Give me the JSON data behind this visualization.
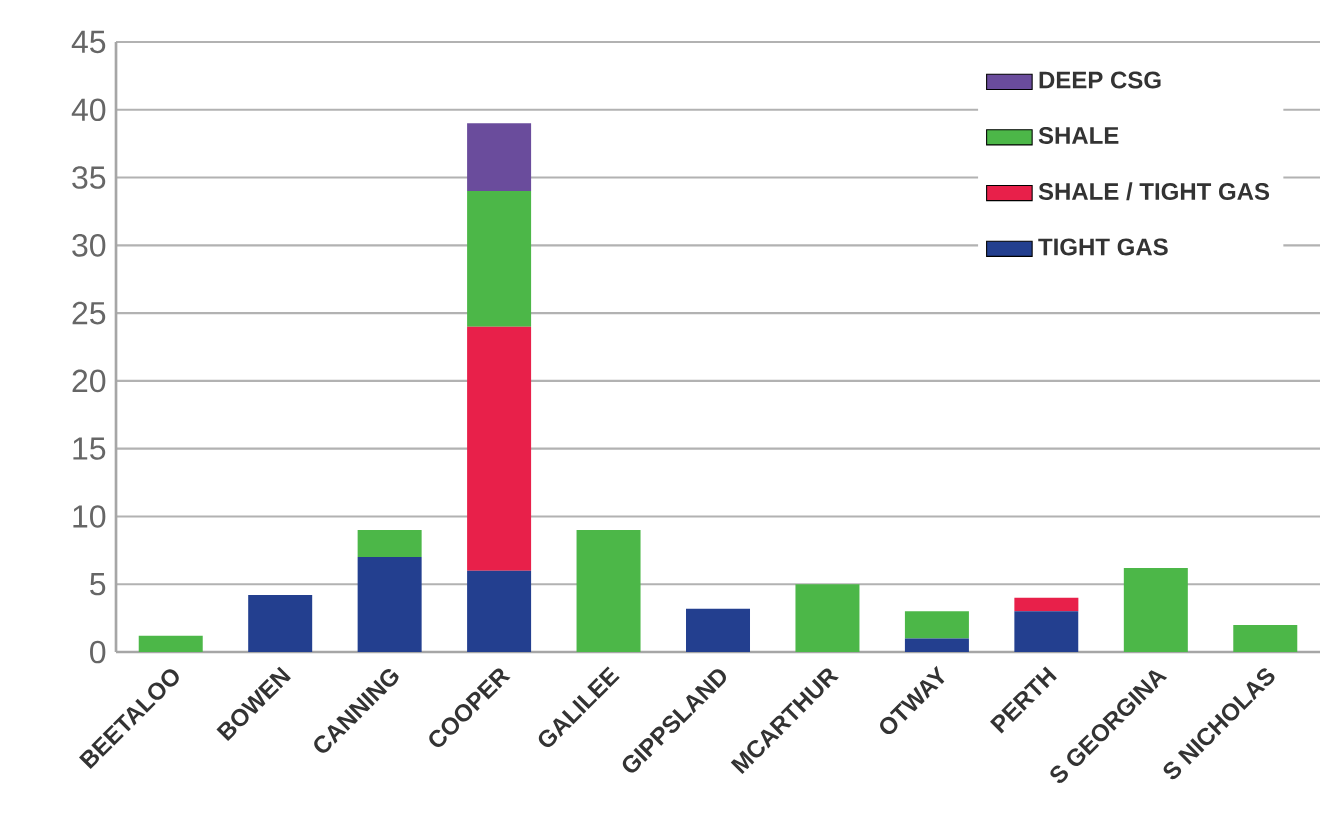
{
  "chart_data": {
    "type": "bar",
    "stacked": true,
    "categories": [
      "BEETALOO",
      "BOWEN",
      "CANNING",
      "COOPER",
      "GALILEE",
      "GIPPSLAND",
      "MCARTHUR",
      "OTWAY",
      "PERTH",
      "S GEORGINA",
      "S NICHOLAS"
    ],
    "series": [
      {
        "name": "TIGHT GAS",
        "color": "#233f8f",
        "values": [
          null,
          4.2,
          7,
          6,
          null,
          3.2,
          null,
          1,
          3,
          null,
          null
        ]
      },
      {
        "name": "SHALE / TIGHT GAS",
        "color": "#e8204a",
        "values": [
          null,
          null,
          null,
          18,
          null,
          null,
          null,
          null,
          1,
          null,
          null
        ]
      },
      {
        "name": "SHALE",
        "color": "#4cb748",
        "values": [
          1.2,
          null,
          2,
          10,
          9,
          null,
          5,
          2,
          null,
          6.2,
          2
        ]
      },
      {
        "name": "DEEP CSG",
        "color": "#6a4c9c",
        "values": [
          null,
          null,
          null,
          5,
          null,
          null,
          null,
          null,
          null,
          null,
          null
        ]
      }
    ],
    "ylim": [
      0,
      45
    ],
    "yticks": [
      0,
      5,
      10,
      15,
      20,
      25,
      30,
      35,
      40,
      45
    ],
    "grid": "y",
    "legend": "top right"
  }
}
